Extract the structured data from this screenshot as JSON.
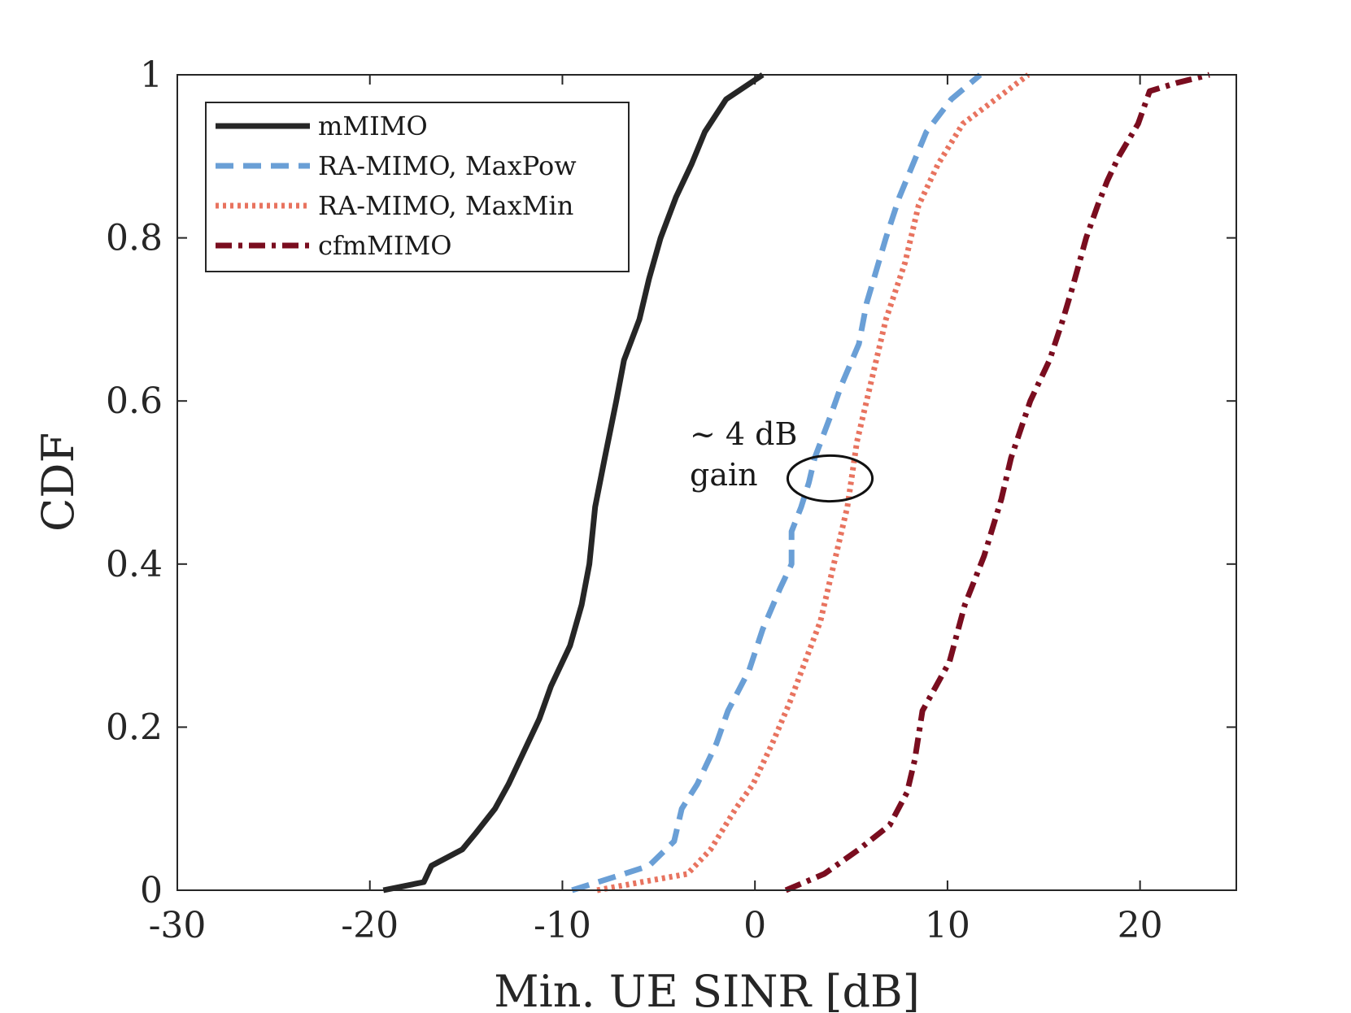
{
  "chart_data": {
    "type": "line",
    "title": "",
    "xlabel": "Min. UE SINR [dB]",
    "ylabel": "CDF",
    "xlim": [
      -30,
      25
    ],
    "ylim": [
      0,
      1
    ],
    "xticks": [
      -30,
      -20,
      -10,
      0,
      10,
      20
    ],
    "xtick_labels": [
      "-30",
      "-20",
      "-10",
      "0",
      "10",
      "20"
    ],
    "yticks": [
      0,
      0.2,
      0.4,
      0.6,
      0.8,
      1
    ],
    "ytick_labels": [
      "0",
      "0.2",
      "0.4",
      "0.6",
      "0.8",
      "1"
    ],
    "grid": false,
    "legend_position": "top-left",
    "series": [
      {
        "name": "mMIMO",
        "color": "#262626",
        "style": "solid",
        "x": [
          -19.3,
          -17.2,
          -16.8,
          -15.2,
          -14.5,
          -13.5,
          -12.8,
          -12.0,
          -11.2,
          -10.6,
          -9.6,
          -9.0,
          -8.6,
          -8.3,
          -7.8,
          -7.2,
          -6.8,
          -6.0,
          -5.5,
          -4.9,
          -4.1,
          -3.3,
          -2.6,
          -1.5,
          0.4
        ],
        "y": [
          0,
          0.01,
          0.03,
          0.05,
          0.07,
          0.1,
          0.13,
          0.17,
          0.21,
          0.25,
          0.3,
          0.35,
          0.4,
          0.47,
          0.53,
          0.6,
          0.65,
          0.7,
          0.75,
          0.8,
          0.85,
          0.89,
          0.93,
          0.97,
          1.0
        ]
      },
      {
        "name": "RA-MIMO, MaxPow",
        "color": "#6a9fd6",
        "style": "dashed",
        "x": [
          -9.5,
          -6.8,
          -5.5,
          -4.2,
          -3.8,
          -3.0,
          -2.0,
          -1.4,
          -0.3,
          0.4,
          1.3,
          1.9,
          1.9,
          2.4,
          2.8,
          3.1,
          3.9,
          4.5,
          5.4,
          5.8,
          6.8,
          7.5,
          8.2,
          8.9,
          10.2,
          11.7
        ],
        "y": [
          0,
          0.02,
          0.03,
          0.06,
          0.1,
          0.13,
          0.18,
          0.22,
          0.27,
          0.32,
          0.37,
          0.4,
          0.44,
          0.47,
          0.5,
          0.53,
          0.58,
          0.62,
          0.67,
          0.72,
          0.8,
          0.85,
          0.89,
          0.93,
          0.97,
          1.0
        ]
      },
      {
        "name": "RA-MIMO, MaxMin",
        "color": "#e8735f",
        "style": "dotted",
        "x": [
          -8.2,
          -5.9,
          -3.5,
          -2.3,
          -1.0,
          -0.1,
          0.9,
          1.8,
          2.6,
          3.4,
          4.1,
          4.8,
          5.3,
          6.0,
          6.8,
          7.8,
          8.5,
          9.5,
          10.8,
          12.5,
          14.2
        ],
        "y": [
          0,
          0.01,
          0.02,
          0.05,
          0.1,
          0.13,
          0.18,
          0.23,
          0.28,
          0.33,
          0.4,
          0.47,
          0.55,
          0.62,
          0.7,
          0.77,
          0.84,
          0.89,
          0.94,
          0.97,
          1.0
        ]
      },
      {
        "name": "cfmMIMO",
        "color": "#7a0d1f",
        "style": "dashdot",
        "x": [
          1.6,
          3.6,
          5.4,
          7.0,
          7.9,
          8.3,
          8.7,
          10.1,
          10.9,
          11.9,
          12.8,
          13.3,
          14.3,
          15.3,
          16.0,
          16.5,
          17.2,
          17.8,
          18.3,
          18.9,
          19.9,
          20.5,
          21.9,
          23.6
        ],
        "y": [
          0,
          0.02,
          0.05,
          0.08,
          0.12,
          0.16,
          0.22,
          0.28,
          0.35,
          0.41,
          0.48,
          0.53,
          0.6,
          0.65,
          0.7,
          0.74,
          0.8,
          0.84,
          0.87,
          0.9,
          0.94,
          0.98,
          0.99,
          1.0
        ]
      }
    ],
    "annotations": [
      {
        "text_line1": "~ 4 dB",
        "text_line2": "gain",
        "target_x": 3.9,
        "target_y": 0.505,
        "radius_x_db": 2.2,
        "radius_y_cdf": 0.028
      }
    ]
  }
}
